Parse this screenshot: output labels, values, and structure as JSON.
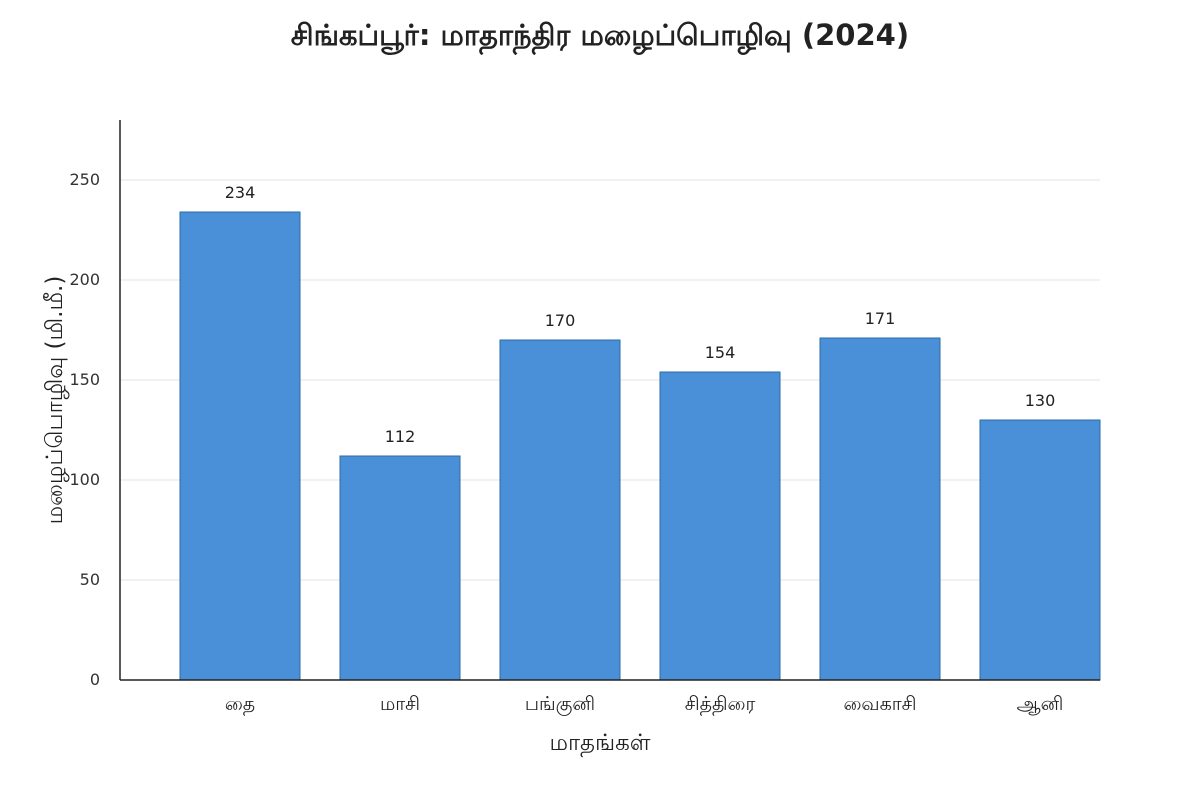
{
  "chart_data": {
    "type": "bar",
    "title": "சிங்கப்பூர்: மாதாந்திர மழைப்பொழிவு (2024)",
    "xlabel": "மாதங்கள்",
    "ylabel": "மழைப்பொழிவு (மி.மீ.)",
    "categories": [
      "தை",
      "மாசி",
      "பங்குனி",
      "சித்திரை",
      "வைகாசி",
      "ஆனி"
    ],
    "values": [
      234,
      112,
      170,
      154,
      171,
      130
    ],
    "ylim": [
      0,
      280
    ],
    "yticks": [
      0,
      50,
      100,
      150,
      200,
      250
    ],
    "grid": true,
    "bar_color": "#4a90d9",
    "bar_edge_color": "#2f6aa8"
  }
}
